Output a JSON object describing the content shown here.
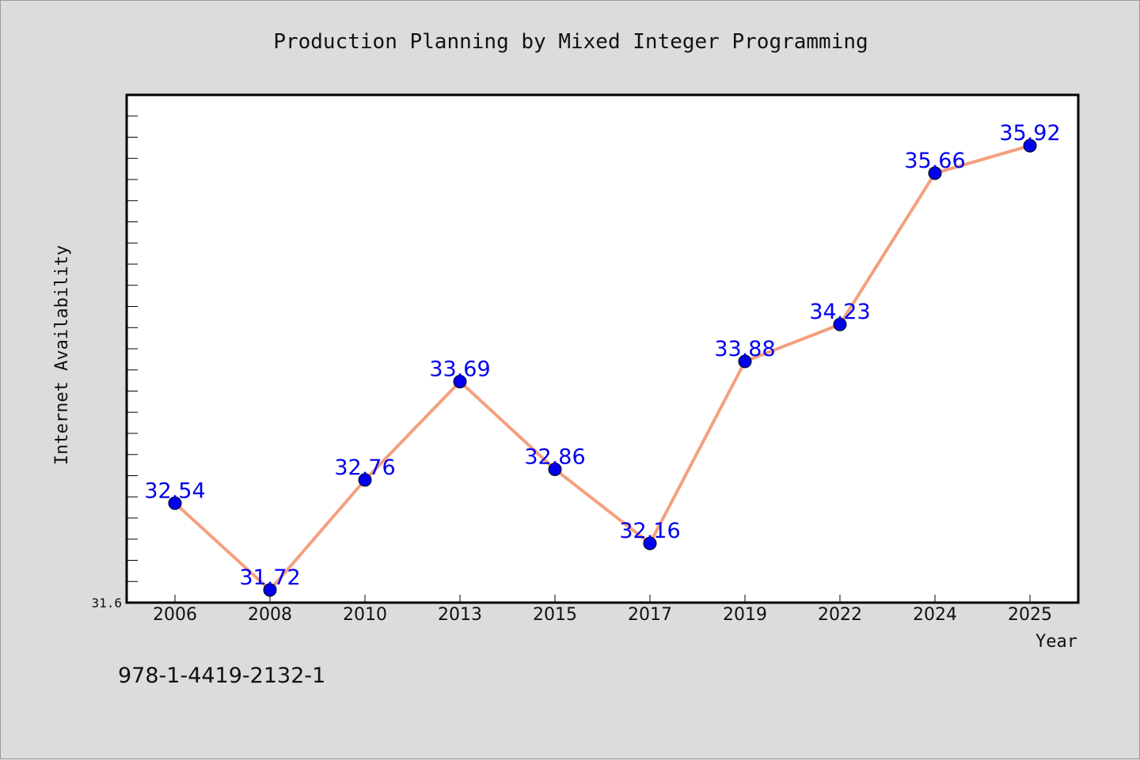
{
  "chart_data": {
    "type": "line",
    "title": "Production Planning by Mixed Integer Programming",
    "xlabel": "Year",
    "ylabel": "Internet Availability",
    "categories": [
      "2006",
      "2008",
      "2010",
      "2013",
      "2015",
      "2017",
      "2019",
      "2022",
      "2024",
      "2025"
    ],
    "series": [
      {
        "values": [
          32.54,
          31.72,
          32.76,
          33.69,
          32.86,
          32.16,
          33.88,
          34.23,
          35.66,
          35.92
        ],
        "line_color": "#f4a07e",
        "marker_color": "#0000ee"
      }
    ],
    "data_labels": [
      "32.54",
      "31.72",
      "32.76",
      "33.69",
      "32.86",
      "32.16",
      "33.88",
      "34.23",
      "35.66",
      "35.92"
    ],
    "ylim": [
      31.6,
      36.4
    ],
    "yticks_labeled": [
      "31.6"
    ],
    "grid": false,
    "legend": "none"
  },
  "footer": {
    "isbn": "978-1-4419-2132-1"
  }
}
